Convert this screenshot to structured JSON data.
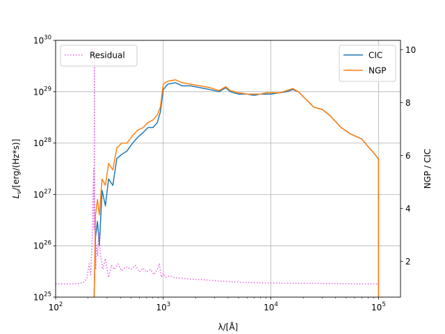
{
  "chart_data": {
    "type": "line",
    "xlabel": "λ/[Å]",
    "ylabel_left": "L_ν/[erg/(Hz*s)]",
    "ylabel_right": "NGP / CIC",
    "x_scale": "log",
    "y_left_scale": "log",
    "xlim": [
      100,
      160000
    ],
    "ylim_left": [
      1e+25,
      1e+30
    ],
    "ylim_right": [
      0.65,
      10.35
    ],
    "grid": true,
    "x_ticks": [
      {
        "value": 100,
        "base": "10",
        "exp": "2"
      },
      {
        "value": 1000,
        "base": "10",
        "exp": "3"
      },
      {
        "value": 10000,
        "base": "10",
        "exp": "4"
      },
      {
        "value": 100000,
        "base": "10",
        "exp": "5"
      }
    ],
    "y_left_ticks": [
      {
        "value": 1e+25,
        "base": "10",
        "exp": "25"
      },
      {
        "value": 1e+26,
        "base": "10",
        "exp": "26"
      },
      {
        "value": 1e+27,
        "base": "10",
        "exp": "27"
      },
      {
        "value": 1e+28,
        "base": "10",
        "exp": "28"
      },
      {
        "value": 1e+29,
        "base": "10",
        "exp": "29"
      },
      {
        "value": 1e+30,
        "base": "10",
        "exp": "30"
      }
    ],
    "y_right_ticks": [
      {
        "value": 2,
        "label": "2"
      },
      {
        "value": 4,
        "label": "4"
      },
      {
        "value": 6,
        "label": "6"
      },
      {
        "value": 8,
        "label": "8"
      },
      {
        "value": 10,
        "label": "10"
      }
    ],
    "series": [
      {
        "name": "CIC",
        "axis": "left",
        "color": "#1f77b4",
        "style": "solid",
        "x": [
          228,
          235,
          245,
          255,
          270,
          290,
          310,
          340,
          370,
          410,
          460,
          520,
          580,
          650,
          720,
          800,
          880,
          940,
          1000,
          1100,
          1300,
          1500,
          1800,
          2200,
          2700,
          3300,
          3800,
          4200,
          5000,
          6000,
          7000,
          8000,
          9000,
          10000,
          12000,
          14000,
          16000,
          18000,
          20000,
          23000,
          25000,
          30000,
          35000,
          45000,
          55000,
          70000,
          80000,
          90000,
          100000,
          100000
        ],
        "y": [
          1e+25,
          1.5e+26,
          3e+26,
          1e+26,
          1.2e+27,
          6e+26,
          2e+27,
          1.5e+27,
          5e+27,
          6e+27,
          7e+27,
          1e+28,
          1.3e+28,
          1.6e+28,
          2e+28,
          2e+28,
          2.5e+28,
          4e+28,
          1.1e+29,
          1.4e+29,
          1.5e+29,
          1.3e+29,
          1.3e+29,
          1.2e+29,
          1.1e+29,
          1e+29,
          1.2e+29,
          1e+29,
          9e+28,
          9e+28,
          8.5e+28,
          9e+28,
          9e+28,
          9e+28,
          9.5e+28,
          1e+29,
          1.1e+29,
          1e+29,
          8e+28,
          6e+28,
          5e+28,
          4.5e+28,
          3.5e+28,
          2e+28,
          1.5e+28,
          1.2e+28,
          8.5e+27,
          6.5e+27,
          4.9e+27,
          1e+25
        ]
      },
      {
        "name": "NGP",
        "axis": "left",
        "color": "#ff7f0e",
        "style": "solid",
        "x": [
          228,
          235,
          245,
          255,
          270,
          290,
          310,
          340,
          370,
          410,
          460,
          520,
          580,
          650,
          720,
          800,
          880,
          940,
          1000,
          1100,
          1300,
          1500,
          1800,
          2200,
          2700,
          3300,
          3800,
          4200,
          5000,
          6000,
          7000,
          8000,
          9000,
          10000,
          12000,
          14000,
          16000,
          18000,
          20000,
          23000,
          25000,
          30000,
          35000,
          45000,
          55000,
          70000,
          80000,
          90000,
          100000,
          100000
        ],
        "y": [
          1e+25,
          4e+26,
          8e+26,
          4e+26,
          2e+27,
          1.5e+27,
          4e+27,
          3e+27,
          8e+27,
          1e+28,
          1e+28,
          1.4e+28,
          1.8e+28,
          2e+28,
          2.5e+28,
          2.8e+28,
          3.5e+28,
          5e+28,
          1.4e+29,
          1.6e+29,
          1.7e+29,
          1.5e+29,
          1.4e+29,
          1.3e+29,
          1.2e+29,
          1.05e+29,
          1.25e+29,
          1.05e+29,
          9.5e+28,
          9e+28,
          9e+28,
          9e+28,
          9.5e+28,
          9.5e+28,
          9.5e+28,
          1.05e+29,
          1.15e+29,
          1e+29,
          8e+28,
          6e+28,
          5e+28,
          4.5e+28,
          3.5e+28,
          2e+28,
          1.5e+28,
          1.2e+28,
          8.5e+27,
          6.5e+27,
          4.9e+27,
          1e+25
        ]
      },
      {
        "name": "Residual",
        "axis": "right",
        "color": "#e060e0",
        "style": "dotted",
        "x": [
          100,
          150,
          180,
          195,
          205,
          212,
          218,
          222,
          226,
          228,
          229.5,
          230.5,
          232,
          236,
          240,
          246,
          252,
          262,
          275,
          290,
          310,
          330,
          350,
          380,
          410,
          450,
          500,
          550,
          600,
          650,
          700,
          760,
          820,
          880,
          920,
          960,
          1000,
          1050,
          1150,
          1300,
          1500,
          1800,
          2500,
          3500,
          5000,
          7000,
          10000,
          20000,
          40000,
          70000,
          100000
        ],
        "y": [
          1.15,
          1.15,
          1.2,
          1.35,
          1.9,
          1.5,
          2.7,
          4.4,
          5.5,
          3.2,
          10.1,
          4,
          3.3,
          1.7,
          2.6,
          2.2,
          3.1,
          2.2,
          1.7,
          2.1,
          1.4,
          1.85,
          1.7,
          1.9,
          1.65,
          1.8,
          1.7,
          1.85,
          1.6,
          1.75,
          1.6,
          1.7,
          1.5,
          1.7,
          1.9,
          1.4,
          1.55,
          1.4,
          1.45,
          1.38,
          1.36,
          1.33,
          1.3,
          1.25,
          1.22,
          1.2,
          1.18,
          1.17,
          1.16,
          1.15,
          1.15
        ]
      }
    ],
    "legend_left": {
      "placement": "upper-left",
      "entries": [
        "Residual"
      ]
    },
    "legend_right": {
      "placement": "upper-right",
      "entries": [
        "CIC",
        "NGP"
      ]
    }
  }
}
